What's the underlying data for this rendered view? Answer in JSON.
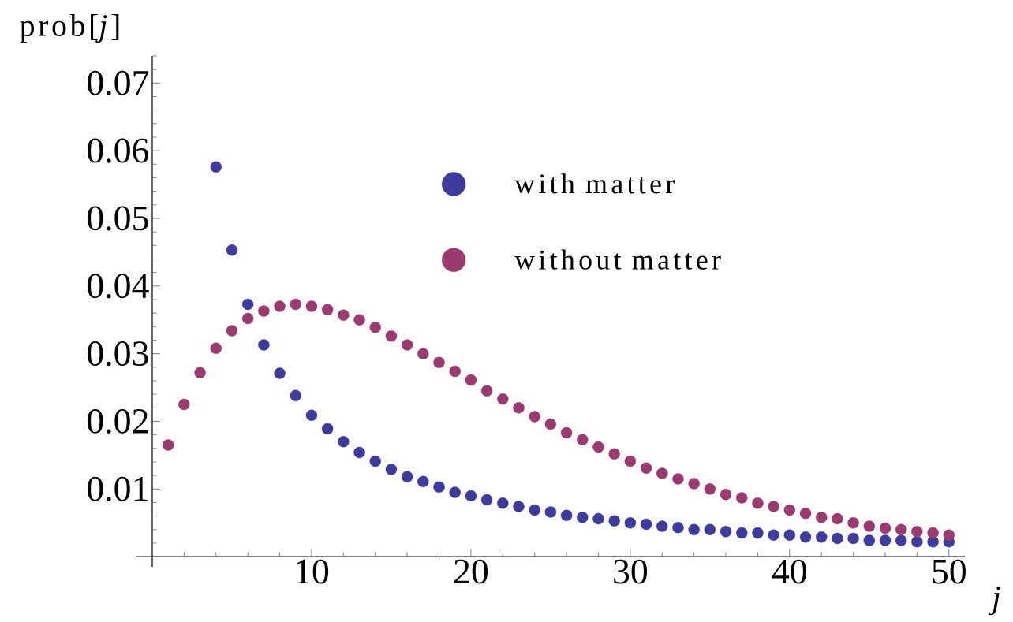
{
  "chart_data": {
    "type": "scatter",
    "xlabel": "j",
    "ylabel": "prob[*j*]",
    "legend": "top",
    "marker": "circle",
    "xlim": [
      -1,
      51
    ],
    "ylim": [
      -0.0015,
      0.074
    ],
    "xticks": [
      {
        "value": 2,
        "label": null
      },
      {
        "value": 4,
        "label": null
      },
      {
        "value": 6,
        "label": null
      },
      {
        "value": 8,
        "label": null
      },
      10,
      {
        "value": 12,
        "label": null
      },
      {
        "value": 14,
        "label": null
      },
      {
        "value": 16,
        "label": null
      },
      {
        "value": 18,
        "label": null
      },
      20,
      {
        "value": 22,
        "label": null
      },
      {
        "value": 24,
        "label": null
      },
      {
        "value": 26,
        "label": null
      },
      {
        "value": 28,
        "label": null
      },
      30,
      {
        "value": 32,
        "label": null
      },
      {
        "value": 34,
        "label": null
      },
      {
        "value": 36,
        "label": null
      },
      {
        "value": 38,
        "label": null
      },
      40,
      {
        "value": 42,
        "label": null
      },
      {
        "value": 44,
        "label": null
      },
      {
        "value": 46,
        "label": null
      },
      {
        "value": 48,
        "label": null
      },
      50
    ],
    "yticks": [
      {
        "value": 0.002,
        "label": null
      },
      {
        "value": 0.004,
        "label": null
      },
      {
        "value": 0.006,
        "label": null
      },
      {
        "value": 0.008,
        "label": null
      },
      0.01,
      {
        "value": 0.012,
        "label": null
      },
      {
        "value": 0.014,
        "label": null
      },
      {
        "value": 0.016,
        "label": null
      },
      {
        "value": 0.018,
        "label": null
      },
      0.02,
      {
        "value": 0.022,
        "label": null
      },
      {
        "value": 0.024,
        "label": null
      },
      {
        "value": 0.026,
        "label": null
      },
      {
        "value": 0.028,
        "label": null
      },
      0.03,
      {
        "value": 0.032,
        "label": null
      },
      {
        "value": 0.034,
        "label": null
      },
      {
        "value": 0.036,
        "label": null
      },
      {
        "value": 0.038,
        "label": null
      },
      0.04,
      {
        "value": 0.042,
        "label": null
      },
      {
        "value": 0.044,
        "label": null
      },
      {
        "value": 0.046,
        "label": null
      },
      {
        "value": 0.048,
        "label": null
      },
      0.05,
      {
        "value": 0.052,
        "label": null
      },
      {
        "value": 0.054,
        "label": null
      },
      {
        "value": 0.056,
        "label": null
      },
      {
        "value": 0.058,
        "label": null
      },
      0.06,
      {
        "value": 0.062,
        "label": null
      },
      {
        "value": 0.064,
        "label": null
      },
      {
        "value": 0.066,
        "label": null
      },
      {
        "value": 0.068,
        "label": null
      },
      0.07,
      {
        "value": 0.072,
        "label": null
      },
      {
        "value": 0.074,
        "label": null
      }
    ],
    "series": [
      {
        "name": "with matter",
        "color": "#3e3a9e",
        "x": [
          4,
          5,
          6,
          7,
          8,
          9,
          10,
          11,
          12,
          13,
          14,
          15,
          16,
          17,
          18,
          19,
          20,
          21,
          22,
          23,
          24,
          25,
          26,
          27,
          28,
          29,
          30,
          31,
          32,
          33,
          34,
          35,
          36,
          37,
          38,
          39,
          40,
          41,
          42,
          43,
          44,
          45,
          46,
          47,
          48,
          49,
          50
        ],
        "values": [
          0.0576,
          0.0453,
          0.0373,
          0.0313,
          0.0271,
          0.0238,
          0.0209,
          0.0189,
          0.017,
          0.0154,
          0.0141,
          0.0129,
          0.0118,
          0.0111,
          0.0103,
          0.0095,
          0.009,
          0.0084,
          0.0079,
          0.0074,
          0.0069,
          0.0066,
          0.0061,
          0.0058,
          0.0056,
          0.0053,
          0.005,
          0.0048,
          0.0045,
          0.0043,
          0.004,
          0.004,
          0.0037,
          0.0035,
          0.0035,
          0.0032,
          0.0032,
          0.0029,
          0.0029,
          0.0027,
          0.0027,
          0.0024,
          0.0024,
          0.0024,
          0.0022,
          0.0022,
          0.0022
        ]
      },
      {
        "name": "without matter",
        "color": "#9b3a6e",
        "x": [
          1,
          2,
          3,
          4,
          5,
          6,
          7,
          8,
          9,
          10,
          11,
          12,
          13,
          14,
          15,
          16,
          17,
          18,
          19,
          20,
          21,
          22,
          23,
          24,
          25,
          26,
          27,
          28,
          29,
          30,
          31,
          32,
          33,
          34,
          35,
          36,
          37,
          38,
          39,
          40,
          41,
          42,
          43,
          44,
          45,
          46,
          47,
          48,
          49,
          50
        ],
        "values": [
          0.0165,
          0.0225,
          0.0272,
          0.0308,
          0.0334,
          0.0352,
          0.0363,
          0.037,
          0.0373,
          0.037,
          0.0365,
          0.0357,
          0.035,
          0.0339,
          0.0326,
          0.0313,
          0.03,
          0.0287,
          0.0274,
          0.0261,
          0.0245,
          0.0233,
          0.022,
          0.0207,
          0.0196,
          0.0183,
          0.0173,
          0.0162,
          0.0152,
          0.0141,
          0.0131,
          0.0123,
          0.0115,
          0.0108,
          0.01,
          0.0092,
          0.0087,
          0.0079,
          0.0074,
          0.0069,
          0.0064,
          0.0058,
          0.0056,
          0.005,
          0.0045,
          0.0042,
          0.004,
          0.0037,
          0.0035,
          0.0032
        ]
      }
    ]
  }
}
